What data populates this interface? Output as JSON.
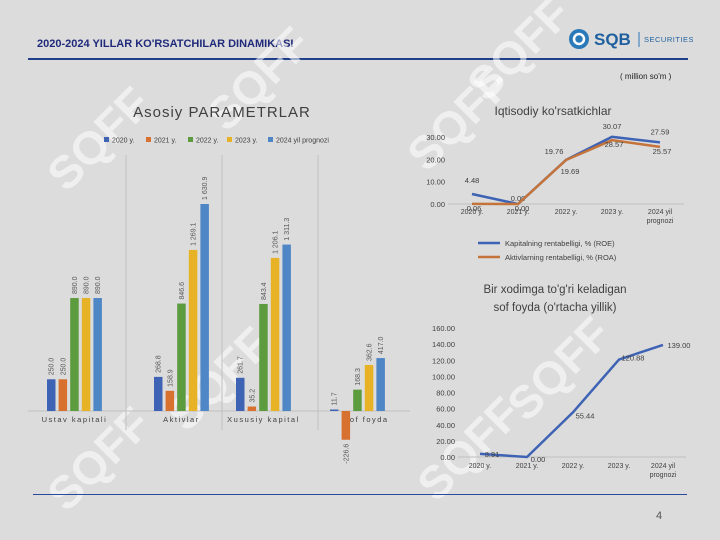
{
  "header": {
    "title": "2020-2024 YILLAR KO'RSATCHILAR DINAMIKASI",
    "logo_text": "SQB",
    "logo_sub": "SECURITIES",
    "unit_note": "( million so'm )",
    "watermark": "SQFF"
  },
  "page_number": "4",
  "colors": {
    "s2020": "#3f63b4",
    "s2021": "#d8702f",
    "s2022": "#5c9b3e",
    "s2023": "#e7b226",
    "s2024": "#4f86c5",
    "roe": "#3f63b4",
    "roa": "#c4733a",
    "line": "#3f63b4"
  },
  "chart_data": [
    {
      "type": "bar",
      "title": "Asosiy PARAMETRLAR",
      "categories": [
        "Ustav kapitali",
        "Aktivlar",
        "Xususiy kapital",
        "Sof foyda"
      ],
      "series": [
        {
          "name": "2020 y.",
          "values": [
            250.0,
            268.8,
            261.7,
            11.7
          ],
          "labels": [
            "250.0",
            "268.8",
            "261.7",
            "11.7"
          ]
        },
        {
          "name": "2021 y.",
          "values": [
            250.0,
            158.9,
            35.2,
            -226.6
          ],
          "labels": [
            "250.0",
            "158.9",
            "35.2",
            "-226.6"
          ]
        },
        {
          "name": "2022 y.",
          "values": [
            890.0,
            846.6,
            843.4,
            168.3
          ],
          "labels": [
            "890.0",
            "846.6",
            "843.4",
            "168.3"
          ]
        },
        {
          "name": "2023 y.",
          "values": [
            890.0,
            1269.1,
            1206.1,
            362.6
          ],
          "labels": [
            "890.0",
            "1 269.1",
            "1 206.1",
            "362.6"
          ]
        },
        {
          "name": "2024 yil prognozi",
          "values": [
            890.0,
            1630.9,
            1311.3,
            417.0
          ],
          "labels": [
            "890.0",
            "1 630.9",
            "1 311.3",
            "417.0"
          ]
        }
      ],
      "legend": "top"
    },
    {
      "type": "line",
      "title": "Iqtisodiy ko'rsatkichlar",
      "categories": [
        "2020 y.",
        "2021 y.",
        "2022 y.",
        "2023 y.",
        "2024 yil prognozi"
      ],
      "yticks": [
        "0.00",
        "10.00",
        "20.00",
        "30.00"
      ],
      "ylim": [
        0,
        30
      ],
      "series": [
        {
          "name": "Kapitalning rentabelligi, % (ROE)",
          "values": [
            4.48,
            0.0,
            19.76,
            30.07,
            27.59
          ],
          "labels": [
            "4.48",
            "0.00",
            "19.76",
            "30.07",
            "27.59"
          ]
        },
        {
          "name": "Aktivlarning rentabelligi, % (ROA)",
          "values": [
            0.06,
            0.0,
            19.69,
            28.57,
            25.57
          ],
          "labels": [
            "0.06",
            "0.00",
            "19.69",
            "28.57",
            "25.57"
          ]
        }
      ],
      "legend": "bottom"
    },
    {
      "type": "line",
      "title": "Bir xodimga to'g'ri keladigan sof foyda (o'rtacha yillik)",
      "title_lines": [
        "Bir xodimga to'g'ri keladigan",
        "sof foyda (o'rtacha yillik)"
      ],
      "categories": [
        "2020 y.",
        "2021 y.",
        "2022 y.",
        "2023 y.",
        "2024 yil prognozi"
      ],
      "yticks": [
        "0.00",
        "20.00",
        "40.00",
        "60.00",
        "80.00",
        "100.00",
        "120.00",
        "140.00",
        "160.00"
      ],
      "ylim": [
        0,
        160
      ],
      "series": [
        {
          "name": "",
          "values": [
            3.91,
            0.0,
            55.44,
            120.88,
            139.0
          ],
          "labels": [
            "3.91",
            "0.00",
            "55.44",
            "120.88",
            "139.00"
          ]
        }
      ]
    }
  ]
}
